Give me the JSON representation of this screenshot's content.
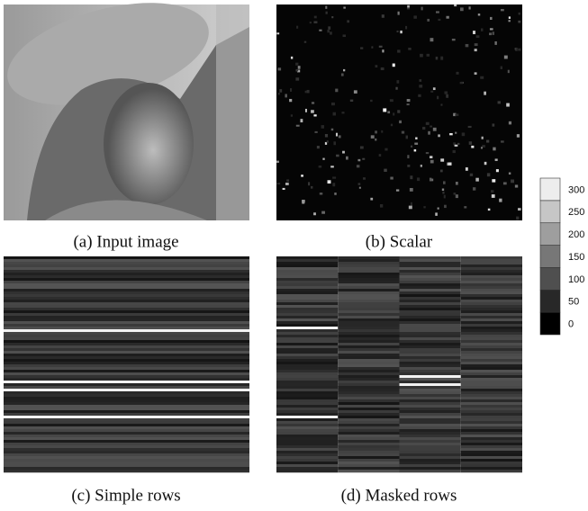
{
  "panels": [
    {
      "caption": "(a) Input image"
    },
    {
      "caption": "(b) Scalar"
    },
    {
      "caption": "(c) Simple rows"
    },
    {
      "caption": "(d) Masked rows"
    }
  ],
  "colorbar": {
    "ticks": [
      0,
      50,
      100,
      150,
      200,
      250,
      300
    ]
  }
}
